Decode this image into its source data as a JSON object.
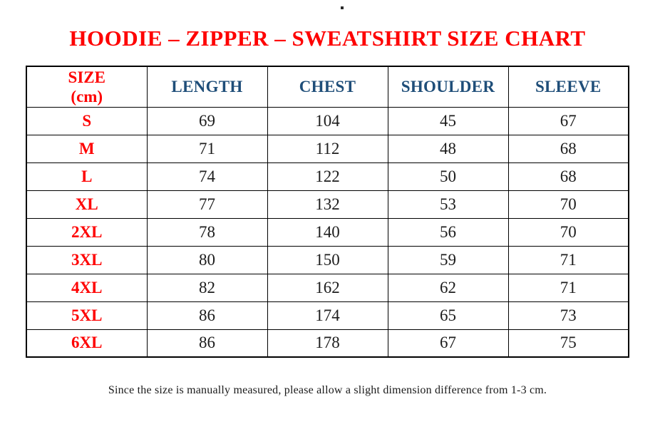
{
  "page": {
    "title": "HOODIE – ZIPPER – SWEATSHIRT SIZE CHART",
    "footnote": "Since the size is manually measured, please allow a slight dimension difference from 1-3 cm."
  },
  "colors": {
    "title_red": "#FE0000",
    "size_label_red": "#FE0000",
    "header_blue": "#1F4E79",
    "body_text": "#1C1C1C",
    "border": "#000000",
    "background": "#FFFFFF"
  },
  "table": {
    "header": {
      "size": {
        "line1": "SIZE",
        "line2": "(cm)"
      },
      "columns": [
        "LENGTH",
        "CHEST",
        "SHOULDER",
        "SLEEVE"
      ]
    },
    "rows": [
      {
        "size": "S",
        "values": [
          "69",
          "104",
          "45",
          "67"
        ]
      },
      {
        "size": "M",
        "values": [
          "71",
          "112",
          "48",
          "68"
        ]
      },
      {
        "size": "L",
        "values": [
          "74",
          "122",
          "50",
          "68"
        ]
      },
      {
        "size": "XL",
        "values": [
          "77",
          "132",
          "53",
          "70"
        ]
      },
      {
        "size": "2XL",
        "values": [
          "78",
          "140",
          "56",
          "70"
        ]
      },
      {
        "size": "3XL",
        "values": [
          "80",
          "150",
          "59",
          "71"
        ]
      },
      {
        "size": "4XL",
        "values": [
          "82",
          "162",
          "62",
          "71"
        ]
      },
      {
        "size": "5XL",
        "values": [
          "86",
          "174",
          "65",
          "73"
        ]
      },
      {
        "size": "6XL",
        "values": [
          "86",
          "178",
          "67",
          "75"
        ]
      }
    ]
  },
  "chart_data": {
    "type": "table",
    "title": "HOODIE – ZIPPER – SWEATSHIRT SIZE CHART",
    "columns": [
      "SIZE (cm)",
      "LENGTH",
      "CHEST",
      "SHOULDER",
      "SLEEVE"
    ],
    "rows": [
      [
        "S",
        69,
        104,
        45,
        67
      ],
      [
        "M",
        71,
        112,
        48,
        68
      ],
      [
        "L",
        74,
        122,
        50,
        68
      ],
      [
        "XL",
        77,
        132,
        53,
        70
      ],
      [
        "2XL",
        78,
        140,
        56,
        70
      ],
      [
        "3XL",
        80,
        150,
        59,
        71
      ],
      [
        "4XL",
        82,
        162,
        62,
        71
      ],
      [
        "5XL",
        86,
        174,
        65,
        73
      ],
      [
        "6XL",
        86,
        178,
        67,
        75
      ]
    ],
    "footnote": "Since the size is manually measured, please allow a slight dimension difference from 1-3 cm.",
    "layout_hints": {
      "grid": "full-borders",
      "units": "cm"
    }
  }
}
